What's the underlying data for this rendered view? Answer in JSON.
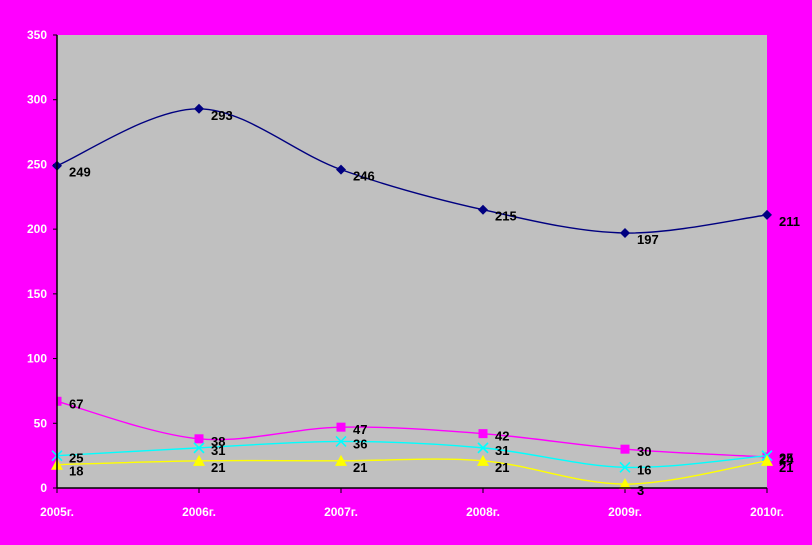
{
  "chart_data": {
    "type": "line",
    "categories": [
      "2005г.",
      "2006г.",
      "2007г.",
      "2008г.",
      "2009г.",
      "2010г."
    ],
    "ylim": [
      0,
      350
    ],
    "yticks": [
      "0",
      "50",
      "100",
      "150",
      "200",
      "250",
      "300",
      "350"
    ],
    "grid": false,
    "legend": "none",
    "plot_background": "#c0c0c0",
    "series": [
      {
        "values": [
          249,
          293,
          246,
          215,
          197,
          211
        ],
        "color": "#000080",
        "marker": "diamond"
      },
      {
        "values": [
          67,
          38,
          47,
          42,
          30,
          24
        ],
        "color": "#ff00ff",
        "marker": "square"
      },
      {
        "values": [
          25,
          31,
          36,
          31,
          16,
          25
        ],
        "color": "#00ffff",
        "marker": "x"
      },
      {
        "values": [
          18,
          21,
          21,
          21,
          3,
          21
        ],
        "color": "#ffff00",
        "marker": "triangle"
      }
    ]
  }
}
